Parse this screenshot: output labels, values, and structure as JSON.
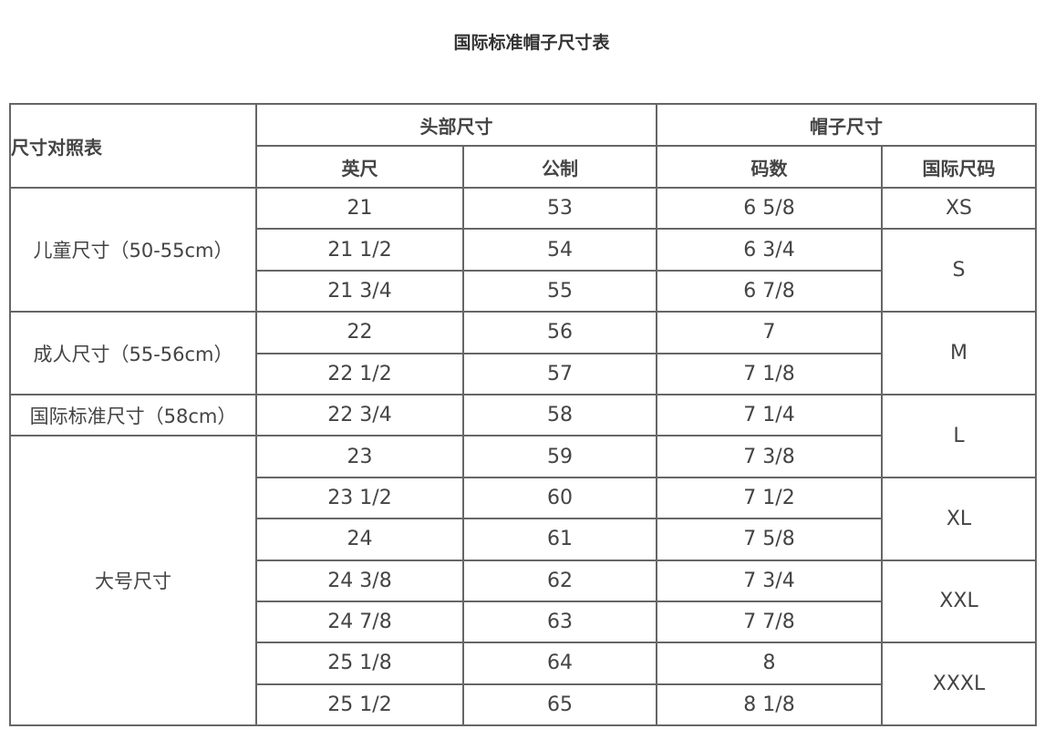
{
  "title": "国际标准帽子尺寸表",
  "header": {
    "corner": "尺寸对照表",
    "head_size": "头部尺寸",
    "hat_size": "帽子尺寸",
    "inch": "英尺",
    "metric": "公制",
    "hat_number": "码数",
    "intl_size": "国际尺码"
  },
  "rows": [
    {
      "inch": "21",
      "metric": "53",
      "hat": "6 5/8"
    },
    {
      "inch": "21 1/2",
      "metric": "54",
      "hat": "6 3/4"
    },
    {
      "inch": "21 3/4",
      "metric": "55",
      "hat": "6 7/8"
    },
    {
      "inch": "22",
      "metric": "56",
      "hat": "7"
    },
    {
      "inch": "22 1/2",
      "metric": "57",
      "hat": "7 1/8"
    },
    {
      "inch": "22 3/4",
      "metric": "58",
      "hat": "7 1/4"
    },
    {
      "inch": "23",
      "metric": "59",
      "hat": "7 3/8"
    },
    {
      "inch": "23 1/2",
      "metric": "60",
      "hat": "7 1/2"
    },
    {
      "inch": "24",
      "metric": "61",
      "hat": "7 5/8"
    },
    {
      "inch": "24 3/8",
      "metric": "62",
      "hat": "7 3/4"
    },
    {
      "inch": "24 7/8",
      "metric": "63",
      "hat": "7 7/8"
    },
    {
      "inch": "25 1/8",
      "metric": "64",
      "hat": "8"
    },
    {
      "inch": "25 1/2",
      "metric": "65",
      "hat": "8 1/8"
    }
  ],
  "categories": [
    {
      "label": "儿童尺寸（50-55cm）",
      "rows": 3
    },
    {
      "label": "成人尺寸（55-56cm）",
      "rows": 2
    },
    {
      "label": "国际标准尺寸（58cm）",
      "rows": 1
    },
    {
      "label": "大号尺寸",
      "rows": 7
    }
  ],
  "intl_sizes": [
    {
      "label": "XS",
      "rows": 1
    },
    {
      "label": "S",
      "rows": 2
    },
    {
      "label": "M",
      "rows": 2
    },
    {
      "label": "L",
      "rows": 2
    },
    {
      "label": "XL",
      "rows": 2
    },
    {
      "label": "XXL",
      "rows": 2
    },
    {
      "label": "XXXL",
      "rows": 2
    }
  ]
}
